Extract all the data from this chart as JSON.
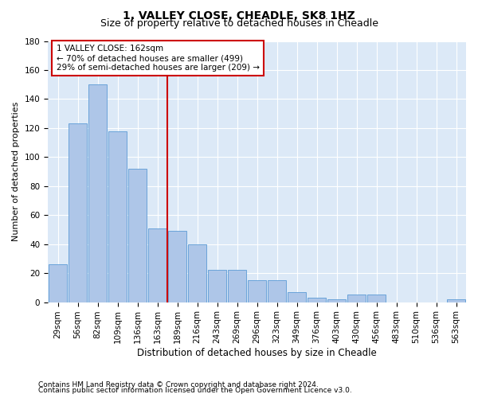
{
  "title1": "1, VALLEY CLOSE, CHEADLE, SK8 1HZ",
  "title2": "Size of property relative to detached houses in Cheadle",
  "xlabel": "Distribution of detached houses by size in Cheadle",
  "ylabel": "Number of detached properties",
  "categories": [
    "29sqm",
    "56sqm",
    "82sqm",
    "109sqm",
    "136sqm",
    "163sqm",
    "189sqm",
    "216sqm",
    "243sqm",
    "269sqm",
    "296sqm",
    "323sqm",
    "349sqm",
    "376sqm",
    "403sqm",
    "430sqm",
    "456sqm",
    "483sqm",
    "510sqm",
    "536sqm",
    "563sqm"
  ],
  "values": [
    26,
    123,
    150,
    118,
    92,
    51,
    49,
    40,
    22,
    22,
    15,
    15,
    7,
    3,
    2,
    5,
    5,
    0,
    0,
    0,
    2
  ],
  "bar_color": "#aec6e8",
  "bar_edge_color": "#5b9bd5",
  "vline_color": "#cc0000",
  "vline_x_index": 5.5,
  "annotation_text": "1 VALLEY CLOSE: 162sqm\n← 70% of detached houses are smaller (499)\n29% of semi-detached houses are larger (209) →",
  "annotation_box_color": "#ffffff",
  "annotation_box_edge": "#cc0000",
  "ylim": [
    0,
    180
  ],
  "yticks": [
    0,
    20,
    40,
    60,
    80,
    100,
    120,
    140,
    160,
    180
  ],
  "footer1": "Contains HM Land Registry data © Crown copyright and database right 2024.",
  "footer2": "Contains public sector information licensed under the Open Government Licence v3.0.",
  "bg_color": "#dce9f7",
  "fig_bg": "#ffffff",
  "title1_fontsize": 10,
  "title2_fontsize": 9,
  "xlabel_fontsize": 8.5,
  "ylabel_fontsize": 8,
  "tick_fontsize": 7.5,
  "footer_fontsize": 6.5,
  "annot_fontsize": 7.5
}
